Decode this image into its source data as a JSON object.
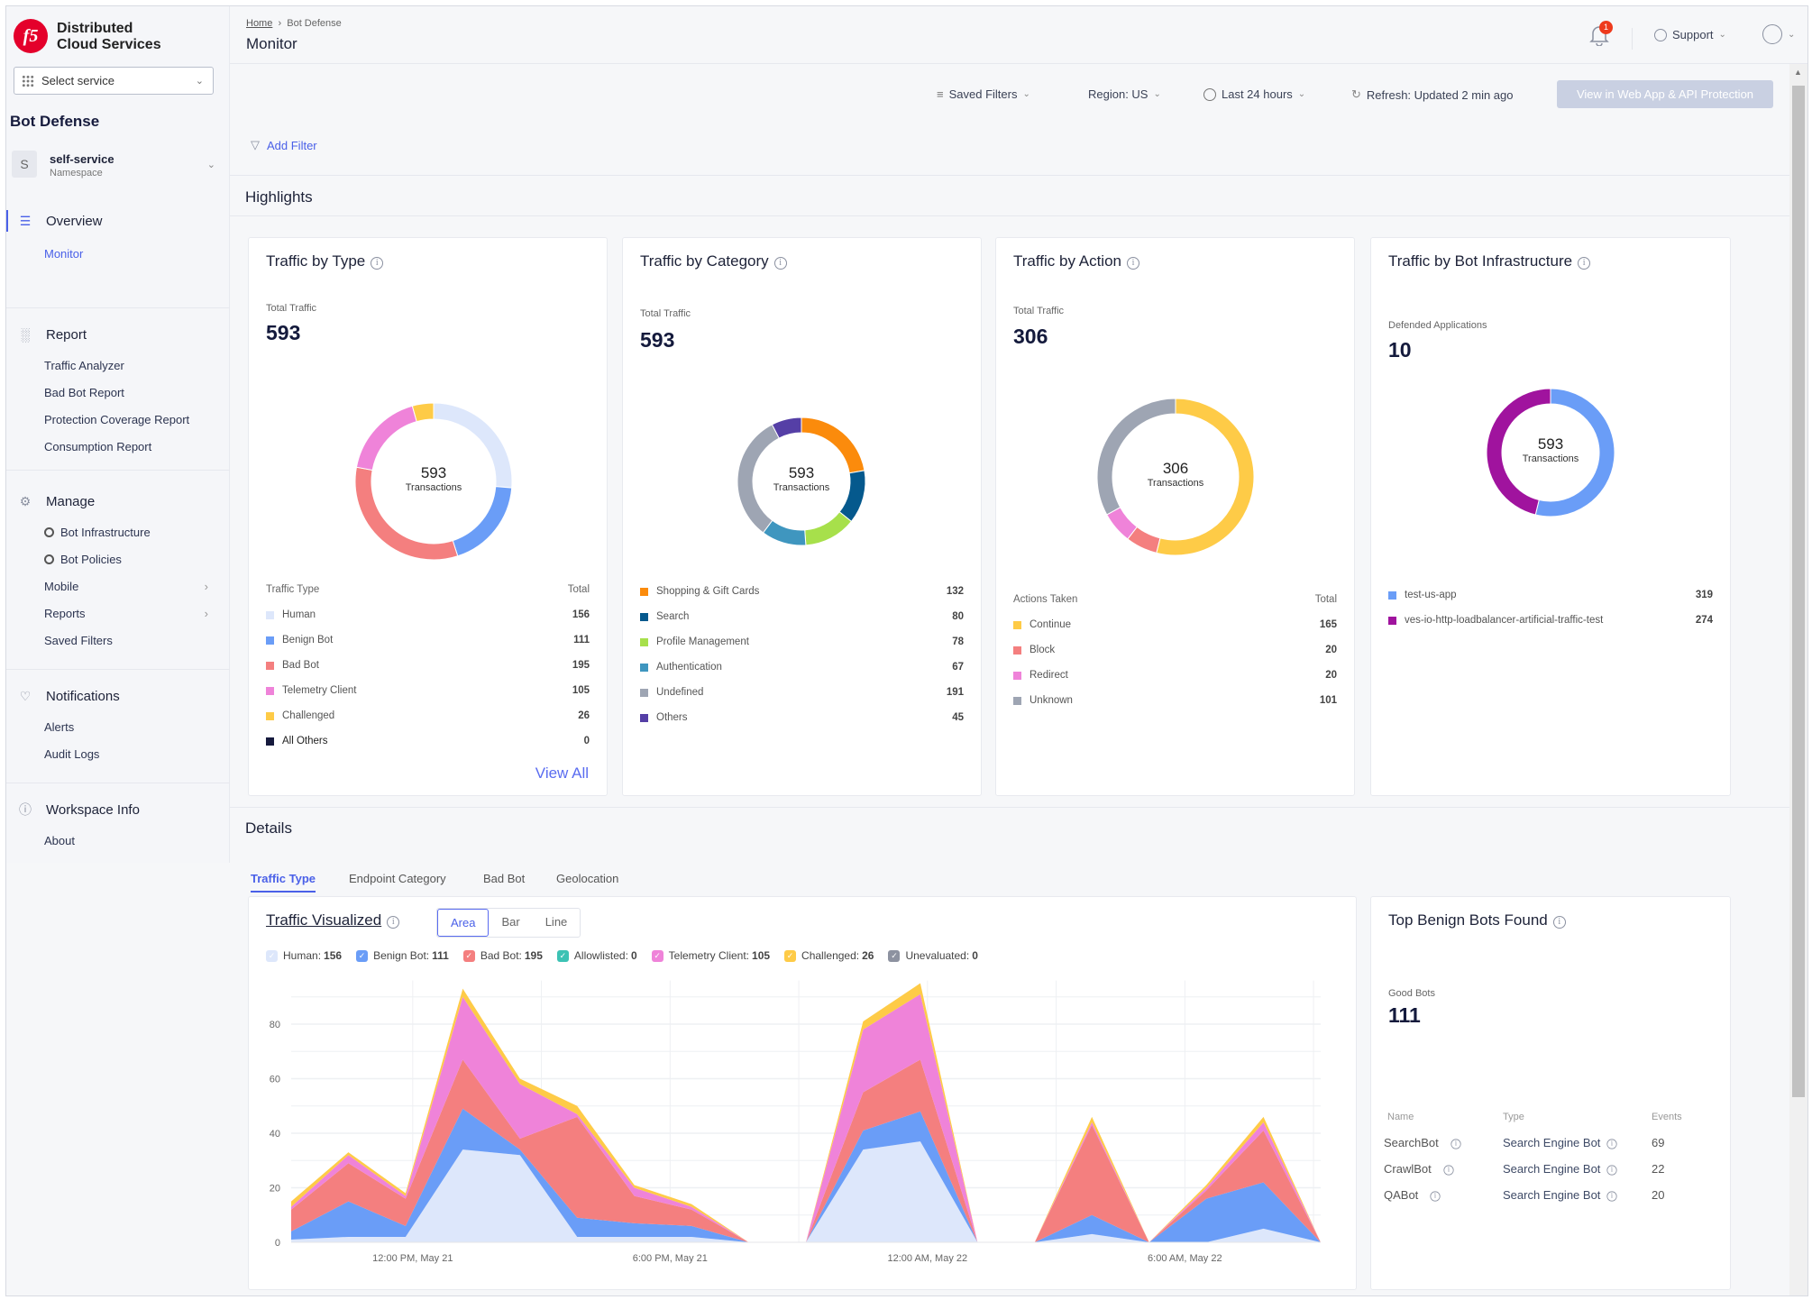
{
  "brand": {
    "logo": "f5",
    "name_line1": "Distributed",
    "name_line2": "Cloud Services"
  },
  "service_select": {
    "placeholder": "Select service"
  },
  "sidebar": {
    "app_title": "Bot Defense",
    "namespace": {
      "initial": "S",
      "name": "self-service",
      "label": "Namespace"
    },
    "groups": [
      {
        "label": "Overview",
        "icon": "overview-icon",
        "items": [
          {
            "label": "Monitor",
            "active": true
          }
        ]
      },
      {
        "label": "Report",
        "icon": "bar-chart-icon",
        "items": [
          {
            "label": "Traffic Analyzer"
          },
          {
            "label": "Bad Bot Report"
          },
          {
            "label": "Protection Coverage Report"
          },
          {
            "label": "Consumption Report"
          }
        ]
      },
      {
        "label": "Manage",
        "icon": "wrench-icon",
        "items": [
          {
            "label": "Bot Infrastructure",
            "eye": true
          },
          {
            "label": "Bot Policies",
            "eye": true
          },
          {
            "label": "Mobile",
            "arrow": true
          },
          {
            "label": "Reports",
            "arrow": true
          },
          {
            "label": "Saved Filters"
          }
        ]
      },
      {
        "label": "Notifications",
        "icon": "bell-icon",
        "items": [
          {
            "label": "Alerts"
          },
          {
            "label": "Audit Logs"
          }
        ]
      },
      {
        "label": "Workspace Info",
        "icon": "info-icon",
        "items": [
          {
            "label": "About"
          }
        ]
      }
    ]
  },
  "header": {
    "breadcrumb": [
      "Home",
      "Bot Defense"
    ],
    "title": "Monitor",
    "notification_count": "1",
    "support": "Support"
  },
  "toolbar": {
    "saved_filters": "Saved Filters",
    "region": "Region: US",
    "time_range": "Last 24 hours",
    "refresh": "Refresh: Updated 2 min ago",
    "view_button": "View in Web App & API Protection",
    "add_filter": "Add Filter"
  },
  "highlights": {
    "title": "Highlights",
    "cards": [
      {
        "title": "Traffic by Type",
        "kpi_label": "Total Traffic",
        "kpi_value": "593",
        "center_value": "593",
        "center_label": "Transactions",
        "legend_header": [
          "Traffic Type",
          "Total"
        ],
        "items": [
          {
            "label": "Human",
            "value": 156,
            "color": "#dde7fb"
          },
          {
            "label": "Benign Bot",
            "value": 111,
            "color": "#6a9df7"
          },
          {
            "label": "Bad Bot",
            "value": 195,
            "color": "#f47f7f"
          },
          {
            "label": "Telemetry Client",
            "value": 105,
            "color": "#ef83d9"
          },
          {
            "label": "Challenged",
            "value": 26,
            "color": "#fecb47"
          },
          {
            "label": "All Others",
            "value": 0,
            "color": "#161a3d"
          }
        ],
        "link": "View All"
      },
      {
        "title": "Traffic by Category",
        "kpi_label": "Total Traffic",
        "kpi_value": "593",
        "center_value": "593",
        "center_label": "Transactions",
        "items": [
          {
            "label": "Shopping & Gift Cards",
            "value": 132,
            "color": "#fb8b0c"
          },
          {
            "label": "Search",
            "value": 80,
            "color": "#05598d"
          },
          {
            "label": "Profile Management",
            "value": 78,
            "color": "#a7e04b"
          },
          {
            "label": "Authentication",
            "value": 67,
            "color": "#3f96bf"
          },
          {
            "label": "Undefined",
            "value": 191,
            "color": "#9ea5b3"
          },
          {
            "label": "Others",
            "value": 45,
            "color": "#553fa6"
          }
        ]
      },
      {
        "title": "Traffic by Action",
        "kpi_label": "Total Traffic",
        "kpi_value": "306",
        "center_value": "306",
        "center_label": "Transactions",
        "legend_header": [
          "Actions Taken",
          "Total"
        ],
        "items": [
          {
            "label": "Continue",
            "value": 165,
            "color": "#fecb47"
          },
          {
            "label": "Block",
            "value": 20,
            "color": "#f47f7f"
          },
          {
            "label": "Redirect",
            "value": 20,
            "color": "#ef83d9"
          },
          {
            "label": "Unknown",
            "value": 101,
            "color": "#9ea5b3"
          }
        ]
      },
      {
        "title": "Traffic by Bot Infrastructure",
        "kpi_label": "Defended Applications",
        "kpi_value": "10",
        "center_value": "593",
        "center_label": "Transactions",
        "items": [
          {
            "label": "test-us-app",
            "value": 319,
            "color": "#6a9df7"
          },
          {
            "label": "ves-io-http-loadbalancer-artificial-traffic-test",
            "value": 274,
            "color": "#a0139e"
          }
        ]
      }
    ]
  },
  "details": {
    "title": "Details",
    "tabs": [
      "Traffic Type",
      "Endpoint Category",
      "Bad Bot",
      "Geolocation"
    ],
    "active_tab": "Traffic Type",
    "chart_title": "Traffic Visualized",
    "chart_modes": [
      "Area",
      "Bar",
      "Line"
    ],
    "active_mode": "Area",
    "benign": {
      "title": "Top Benign Bots Found",
      "kpi_label": "Good Bots",
      "kpi_value": "111",
      "columns": [
        "Name",
        "Type",
        "Events"
      ],
      "rows": [
        {
          "name": "SearchBot",
          "type": "Search Engine Bot",
          "events": "69"
        },
        {
          "name": "CrawlBot",
          "type": "Search Engine Bot",
          "events": "22"
        },
        {
          "name": "QABot",
          "type": "Search Engine Bot",
          "events": "20"
        }
      ]
    }
  },
  "chart_data": {
    "type": "area",
    "stacked": true,
    "grid": true,
    "ylim": [
      0,
      96
    ],
    "yticks": [
      0,
      20,
      40,
      60,
      80
    ],
    "xticks": [
      {
        "x": "May 21 12:00",
        "label": "12:00 PM, May 21"
      },
      {
        "x": "May 21 18:00",
        "label": "6:00 PM, May 21"
      },
      {
        "x": "May 22 00:00",
        "label": "12:00 AM, May 22"
      },
      {
        "x": "May 22 06:00",
        "label": "6:00 AM, May 22"
      }
    ],
    "x": [
      "May 21 09:10",
      "May 21 10:30",
      "May 21 11:50",
      "May 21 13:10",
      "May 21 14:30",
      "May 21 15:50",
      "May 21 17:10",
      "May 21 18:30",
      "May 21 19:50",
      "May 21 21:10",
      "May 21 22:30",
      "May 21 23:50",
      "May 22 01:10",
      "May 22 02:30",
      "May 22 03:50",
      "May 22 05:10",
      "May 22 06:30",
      "May 22 07:50",
      "May 22 09:10"
    ],
    "series": [
      {
        "name": "Human",
        "total": 156,
        "color": "#dde7fb",
        "values": [
          1,
          2,
          2,
          34,
          32,
          2,
          2,
          2,
          0,
          0,
          34,
          37,
          0,
          0,
          3,
          0,
          0,
          5,
          0
        ]
      },
      {
        "name": "Benign Bot",
        "total": 111,
        "color": "#6a9df7",
        "values": [
          3,
          13,
          4,
          15,
          2,
          7,
          5,
          4,
          0,
          0,
          7,
          11,
          0,
          0,
          7,
          0,
          16,
          17,
          0
        ]
      },
      {
        "name": "Bad Bot",
        "total": 195,
        "color": "#f47f7f",
        "values": [
          8,
          14,
          10,
          18,
          4,
          37,
          10,
          6,
          0,
          0,
          14,
          19,
          0,
          0,
          33,
          0,
          3,
          19,
          0
        ]
      },
      {
        "name": "Allowlisted",
        "total": 0,
        "color": "#3cc2b4",
        "values": [
          0,
          0,
          0,
          0,
          0,
          0,
          0,
          0,
          0,
          0,
          0,
          0,
          0,
          0,
          0,
          0,
          0,
          0,
          0
        ]
      },
      {
        "name": "Telemetry Client",
        "total": 105,
        "color": "#ef83d9",
        "values": [
          1,
          3,
          1,
          23,
          20,
          1,
          3,
          1,
          0,
          0,
          23,
          24,
          0,
          0,
          1,
          0,
          1,
          3,
          0
        ]
      },
      {
        "name": "Challenged",
        "total": 26,
        "color": "#fecb47",
        "values": [
          2,
          1,
          1,
          3,
          2,
          3,
          1,
          1,
          0,
          0,
          3,
          4,
          0,
          0,
          2,
          0,
          1,
          2,
          0
        ]
      },
      {
        "name": "Unevaluated",
        "total": 0,
        "color": "#8d92a0",
        "values": [
          0,
          0,
          0,
          0,
          0,
          0,
          0,
          0,
          0,
          0,
          0,
          0,
          0,
          0,
          0,
          0,
          0,
          0,
          0
        ]
      }
    ]
  }
}
